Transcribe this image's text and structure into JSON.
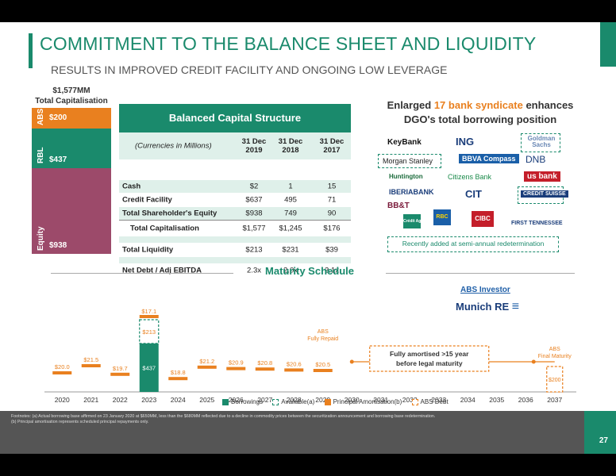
{
  "title": "COMMITMENT TO THE BALANCE SHEET AND LIQUIDITY",
  "subtitle": "RESULTS IN IMPROVED CREDIT FACILITY AND ONGOING LOW LEVERAGE",
  "capitalisation": {
    "total": "$1,577MM",
    "label": "Total Capitalisation",
    "segments": [
      {
        "name": "ABS",
        "value": "$200",
        "color": "#e9801f"
      },
      {
        "name": "RBL",
        "value": "$437",
        "color": "#1a8a6c"
      },
      {
        "name": "Equity",
        "value": "$938",
        "color": "#9c4a6a"
      }
    ]
  },
  "table": {
    "header": "Balanced Capital Structure",
    "units": "(Currencies in Millions)",
    "columns": [
      "31 Dec 2019",
      "31 Dec 2018",
      "31 Dec 2017"
    ],
    "col_a": [
      "31 Dec",
      "2019"
    ],
    "col_b": [
      "31 Dec",
      "2018"
    ],
    "col_c": [
      "31 Dec",
      "2017"
    ],
    "rows": [
      {
        "label": "Cash",
        "v": [
          "$2",
          "1",
          "15"
        ]
      },
      {
        "label": "Credit Facility",
        "v": [
          "$637",
          "495",
          "71"
        ]
      },
      {
        "label": "Total Shareholder's Equity",
        "v": [
          "$938",
          "749",
          "90"
        ]
      },
      {
        "label": "Total Capitalisation",
        "v": [
          "$1,577",
          "$1,245",
          "$176"
        ]
      },
      {
        "label": "Total Liquidity",
        "v": [
          "$213",
          "$231",
          "$39"
        ]
      },
      {
        "label": "Net Debt / Adj EBITDA",
        "v": [
          "2.3x",
          "2.0x",
          "2.1x"
        ]
      }
    ]
  },
  "syndicate": {
    "line1_a": "Enlarged ",
    "line1_hl": "17 bank syndicate",
    "line1_b": " enhances",
    "line2": "DGO's total borrowing position",
    "banks": [
      "KeyBank",
      "ING",
      "Goldman Sachs",
      "Morgan Stanley",
      "BBVA Compass",
      "DNB",
      "Huntington",
      "Citizens Bank",
      "us bank",
      "IBERIABANK",
      "CIT",
      "CREDIT SUISSE",
      "BB&T",
      "RBC",
      "CIBC",
      "FIRST TENNESSEE",
      "Crédit Agricole"
    ],
    "added_note": "Recently added at semi-annual redetermination"
  },
  "maturity": {
    "title": "Maturity Schedule",
    "abs_investor": "ABS Investor",
    "munich_re": "Munich RE",
    "abs_repaid": "ABS Fully Repaid",
    "abs_final": "ABS Final Maturity",
    "amortised_note": "Fully amortised >15 years before legal maturity",
    "legend": [
      "Borrowings",
      "Available(a)",
      "Principal Amortisation(b)",
      "ABS Debt"
    ]
  },
  "chart_data": {
    "type": "bar",
    "categories": [
      "2020",
      "2021",
      "2022",
      "2023",
      "2024",
      "2025",
      "2026",
      "2027",
      "2028",
      "2029",
      "2030",
      "2031",
      "2032",
      "2033",
      "2034",
      "2035",
      "2036",
      "2037"
    ],
    "series": [
      {
        "name": "Principal Amortisation(b)",
        "values": [
          20.0,
          21.5,
          19.7,
          17.1,
          18.8,
          21.2,
          20.9,
          20.8,
          20.6,
          20.5,
          null,
          null,
          null,
          null,
          null,
          null,
          null,
          null
        ]
      },
      {
        "name": "Borrowings",
        "values": [
          null,
          null,
          null,
          437,
          null,
          null,
          null,
          null,
          null,
          null,
          null,
          null,
          null,
          null,
          null,
          null,
          null,
          null
        ]
      },
      {
        "name": "Available(a)",
        "values": [
          null,
          null,
          null,
          213,
          null,
          null,
          null,
          null,
          null,
          null,
          null,
          null,
          null,
          null,
          null,
          null,
          null,
          null
        ]
      },
      {
        "name": "ABS Debt",
        "values": [
          null,
          null,
          null,
          null,
          null,
          null,
          null,
          null,
          null,
          null,
          null,
          null,
          null,
          null,
          null,
          null,
          null,
          200
        ]
      }
    ],
    "labels": [
      "$20.0",
      "$21.5",
      "$19.7",
      "$17.1",
      "$18.8",
      "$21.2",
      "$20.9",
      "$20.8",
      "$20.6",
      "$20.5"
    ],
    "borrow_label": "$437",
    "avail_label": "$213",
    "abs_label": "$200"
  },
  "footer": {
    "line1": "Footnotes: (a) Actual borrowing base affirmed on 23 January 2020 at $650MM, less than the $680MM reflected due to a decline in commodity prices between the securitization announcement and borrowing base redetermination.",
    "line2": "(b) Principal amortisation represents scheduled principal repayments only.",
    "page": "27"
  },
  "colors": {
    "green": "#1a8a6c",
    "orange": "#e9801f",
    "plum": "#9c4a6a"
  }
}
